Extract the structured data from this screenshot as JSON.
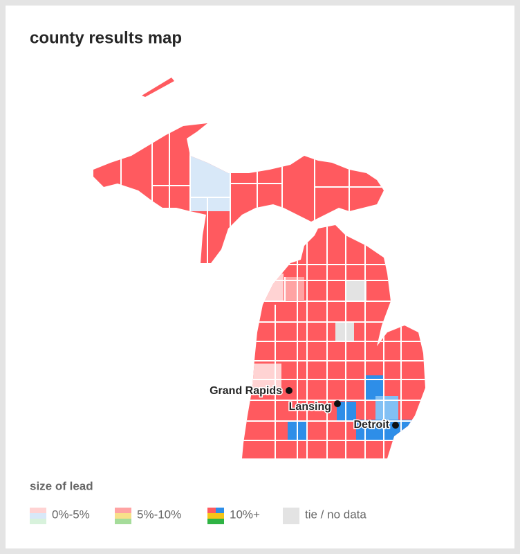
{
  "title": "county results map",
  "cities": [
    {
      "label": "Grand Rapids"
    },
    {
      "label": "Lansing"
    },
    {
      "label": "Detroit"
    }
  ],
  "legend": {
    "title": "size of lead",
    "items": [
      "0%-5%",
      "5%-10%",
      "10%+",
      "tie / no data"
    ]
  }
}
